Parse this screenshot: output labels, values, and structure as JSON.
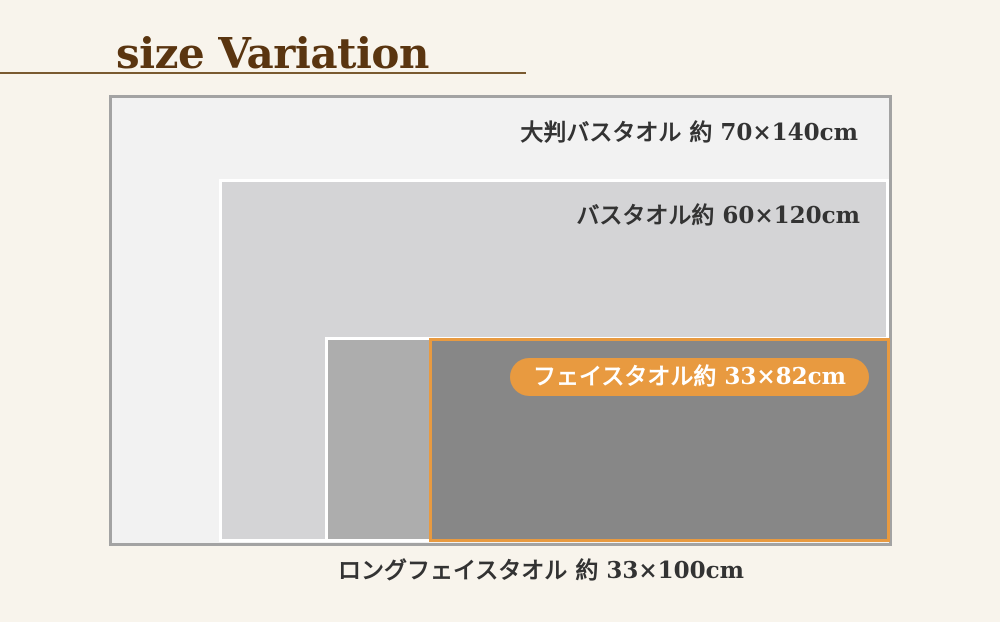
{
  "title": "size Variation",
  "sizes": {
    "large_bath": "大判バスタオル 約 70×140cm",
    "bath": "バスタオル約 60×120cm",
    "face": "フェイスタオル約 33×82cm",
    "long_face": "ロングフェイスタオル 約 33×100cm"
  },
  "colors": {
    "title": "#5a3510",
    "accent": "#e89a40",
    "background": "#f8f4ec"
  }
}
